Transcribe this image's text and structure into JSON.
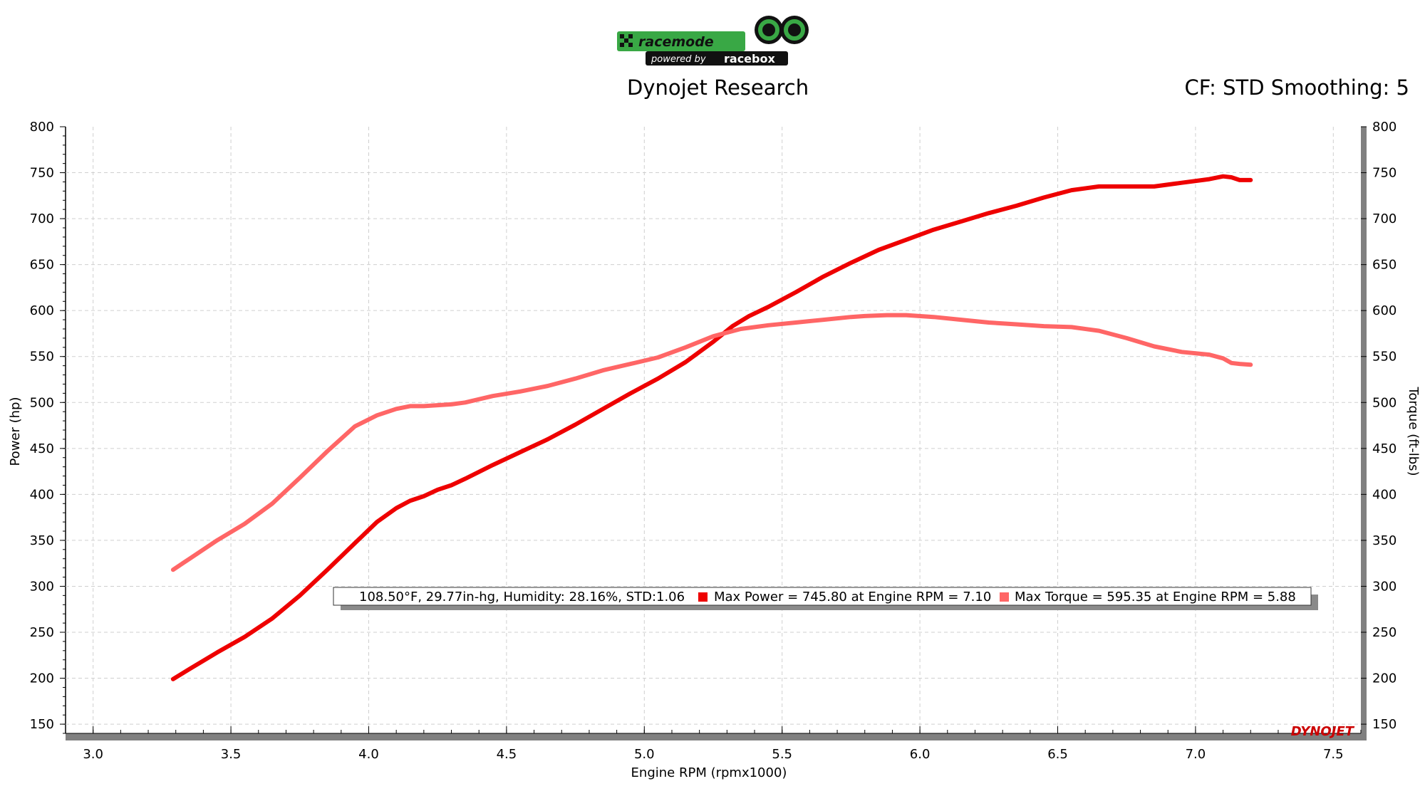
{
  "logo": {
    "brand_text": "racemode",
    "powered_text": "powered by",
    "partner_text": "racebox"
  },
  "header": {
    "title": "Dynojet Research",
    "right_info": "CF: STD Smoothing: 5"
  },
  "legend": {
    "conditions": "108.50°F, 29.77in-hg, Humidity: 28.16%, STD:1.06",
    "power_text": "Max Power = 745.80 at Engine RPM = 7.10",
    "torque_text": "Max Torque = 595.35 at Engine RPM = 5.88"
  },
  "watermark": "DYNOJET",
  "colors": {
    "power": "#ee0000",
    "torque": "#ff6666"
  },
  "chart_data": {
    "type": "line",
    "xlabel": "Engine RPM (rpmx1000)",
    "ylabel_left": "Power (hp)",
    "ylabel_right": "Torque (ft-lbs)",
    "xlim": [
      2.9,
      7.6
    ],
    "ylim": [
      140,
      800
    ],
    "x_ticks": [
      "3.0",
      "3.5",
      "4.0",
      "4.5",
      "5.0",
      "5.5",
      "6.0",
      "6.5",
      "7.0",
      "7.5"
    ],
    "y_ticks": [
      "150",
      "200",
      "250",
      "300",
      "350",
      "400",
      "450",
      "500",
      "550",
      "600",
      "650",
      "700",
      "750",
      "800"
    ],
    "grid": true,
    "series": [
      {
        "name": "Max Power",
        "color": "#ee0000",
        "x": [
          3.29,
          3.35,
          3.45,
          3.55,
          3.65,
          3.75,
          3.85,
          3.95,
          4.03,
          4.1,
          4.15,
          4.2,
          4.25,
          4.3,
          4.35,
          4.45,
          4.55,
          4.65,
          4.75,
          4.85,
          4.95,
          5.05,
          5.15,
          5.25,
          5.32,
          5.38,
          5.45,
          5.55,
          5.65,
          5.75,
          5.85,
          5.95,
          6.05,
          6.15,
          6.25,
          6.35,
          6.45,
          6.55,
          6.65,
          6.75,
          6.85,
          6.95,
          7.05,
          7.1,
          7.13,
          7.16,
          7.2
        ],
        "y": [
          199,
          210,
          228,
          245,
          265,
          290,
          318,
          347,
          370,
          385,
          393,
          398,
          405,
          410,
          417,
          432,
          446,
          460,
          476,
          493,
          510,
          526,
          544,
          566,
          583,
          594,
          604,
          620,
          637,
          652,
          666,
          677,
          688,
          697,
          706,
          714,
          723,
          731,
          735,
          735,
          735,
          739,
          743,
          746,
          745,
          742,
          742
        ]
      },
      {
        "name": "Max Torque",
        "color": "#ff6666",
        "x": [
          3.29,
          3.35,
          3.45,
          3.55,
          3.65,
          3.75,
          3.85,
          3.95,
          4.03,
          4.1,
          4.15,
          4.2,
          4.25,
          4.3,
          4.35,
          4.45,
          4.55,
          4.65,
          4.75,
          4.85,
          4.95,
          5.05,
          5.15,
          5.25,
          5.35,
          5.45,
          5.55,
          5.65,
          5.75,
          5.8,
          5.88,
          5.95,
          6.05,
          6.15,
          6.25,
          6.35,
          6.45,
          6.55,
          6.65,
          6.75,
          6.85,
          6.95,
          7.05,
          7.1,
          7.13,
          7.16,
          7.2
        ],
        "y": [
          318,
          330,
          350,
          368,
          390,
          418,
          447,
          474,
          486,
          493,
          496,
          496,
          497,
          498,
          500,
          507,
          512,
          518,
          526,
          535,
          542,
          549,
          560,
          572,
          580,
          584,
          587,
          590,
          593,
          594,
          595,
          595,
          593,
          590,
          587,
          585,
          583,
          582,
          578,
          570,
          561,
          555,
          552,
          548,
          543,
          542,
          541
        ]
      }
    ]
  }
}
